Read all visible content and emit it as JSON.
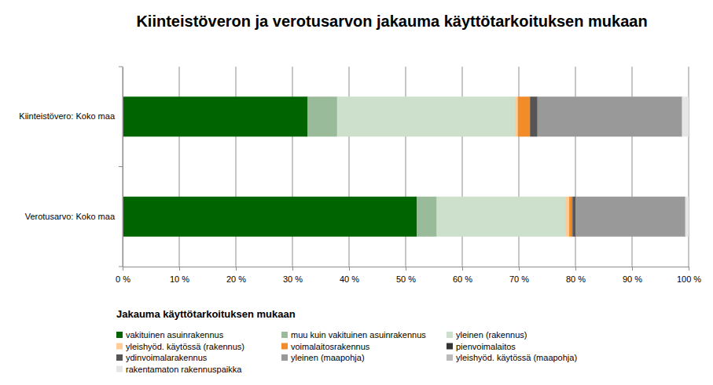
{
  "chart_data": {
    "type": "bar",
    "title": "Kiinteistöveron ja verotusarvon jakauma käyttötarkoituksen mukaan",
    "orientation": "horizontal",
    "stacked": true,
    "grid": true,
    "legend": "bottom",
    "legend_title": "Jakauma käyttötarkoituksen mukaan",
    "categories": [
      "Kiinteistövero: Koko maa",
      "Verotusarvo: Koko maa"
    ],
    "xlim": [
      0,
      100
    ],
    "xticks": [
      {
        "value": 0,
        "label": "0 %"
      },
      {
        "value": 10,
        "label": "10 %"
      },
      {
        "value": 20,
        "label": "20 %"
      },
      {
        "value": 30,
        "label": "30 %"
      },
      {
        "value": 40,
        "label": "40 %"
      },
      {
        "value": 50,
        "label": "50 %"
      },
      {
        "value": 60,
        "label": "60 %"
      },
      {
        "value": 70,
        "label": "70 %"
      },
      {
        "value": 80,
        "label": "80 %"
      },
      {
        "value": 90,
        "label": "90 %"
      },
      {
        "value": 100,
        "label": "100 %"
      }
    ],
    "series": [
      {
        "name": "vakituinen asuinrakennus",
        "color": "#006400",
        "values": [
          32.7,
          52.0
        ]
      },
      {
        "name": "muu kuin vakituinen asuinrakennus",
        "color": "#99bb99",
        "values": [
          5.2,
          3.5
        ]
      },
      {
        "name": "yleinen (rakennus)",
        "color": "#cce0cc",
        "values": [
          31.4,
          22.7
        ]
      },
      {
        "name": "yleishyöd. käytössä (rakennus)",
        "color": "#ffcc99",
        "values": [
          0.5,
          0.7
        ]
      },
      {
        "name": "voimalaitosrakennus",
        "color": "#f28c28",
        "values": [
          2.2,
          0.5
        ]
      },
      {
        "name": "pienvoimalaitos",
        "color": "#333333",
        "values": [
          0.2,
          0.1
        ]
      },
      {
        "name": "ydinvoimalarakennus",
        "color": "#555555",
        "values": [
          1.1,
          0.5
        ]
      },
      {
        "name": "yleinen (maapohja)",
        "color": "#999999",
        "values": [
          25.5,
          19.4
        ]
      },
      {
        "name": "yleishyöd. käytössä (maapohja)",
        "color": "#bbbbbb",
        "values": [
          0.1,
          0.1
        ]
      },
      {
        "name": "rakentamaton rakennuspaikka",
        "color": "#e6e6e6",
        "values": [
          1.1,
          0.5
        ]
      }
    ]
  }
}
